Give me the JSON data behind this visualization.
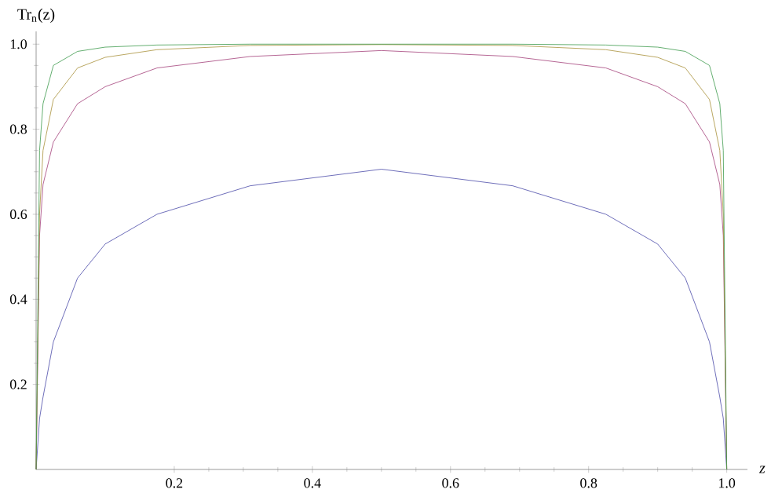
{
  "chart_data": {
    "type": "line",
    "xlabel": "z",
    "ylabel": "Tr$_{n}$(z)",
    "xlim": [
      0,
      1.03
    ],
    "ylim": [
      0,
      1.03
    ],
    "xticks": [
      0.2,
      0.4,
      0.6,
      0.8,
      {
        "value": 1,
        "label": "1.0"
      }
    ],
    "yticks": [
      0.2,
      0.4,
      0.6,
      0.8,
      {
        "value": 1,
        "label": "1.0"
      }
    ],
    "x": [
      0,
      0.005,
      0.01,
      0.025,
      0.06,
      0.1,
      0.175,
      0.31,
      0.5,
      0.69,
      0.825,
      0.9,
      0.94,
      0.975,
      0.99,
      0.995,
      1
    ],
    "series": [
      {
        "color": "#4a4aa8",
        "values": [
          0,
          0.12,
          0.17,
          0.3,
          0.45,
          0.53,
          0.6,
          0.667,
          0.706,
          0.667,
          0.6,
          0.53,
          0.45,
          0.3,
          0.17,
          0.12,
          0
        ]
      },
      {
        "color": "#a3407a",
        "values": [
          0,
          0.55,
          0.67,
          0.77,
          0.86,
          0.9,
          0.944,
          0.971,
          0.985,
          0.971,
          0.944,
          0.9,
          0.86,
          0.77,
          0.67,
          0.55,
          0
        ]
      },
      {
        "color": "#a8903a",
        "values": [
          0,
          0.6,
          0.75,
          0.87,
          0.944,
          0.969,
          0.987,
          0.997,
          0.999,
          0.997,
          0.987,
          0.969,
          0.944,
          0.87,
          0.75,
          0.6,
          0
        ]
      },
      {
        "color": "#3d9a4d",
        "values": [
          0,
          0.75,
          0.86,
          0.95,
          0.983,
          0.993,
          0.998,
          1.0,
          1.0,
          1.0,
          0.998,
          0.993,
          0.983,
          0.95,
          0.86,
          0.75,
          0
        ]
      }
    ],
    "grid": false,
    "marker": "none",
    "line_style": "solid"
  }
}
